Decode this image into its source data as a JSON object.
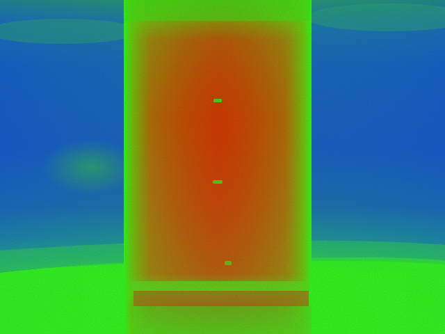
{
  "image": {
    "kind": "thermal-image",
    "palette": {
      "cold": "#1a5fd0",
      "cool": "#1f8fa0",
      "mid": "#33ff20",
      "warm": "#7fd010",
      "hot": "#c85a12",
      "hottest": "#d43a00"
    },
    "subject": "heated-cylinder",
    "visible_text": []
  }
}
